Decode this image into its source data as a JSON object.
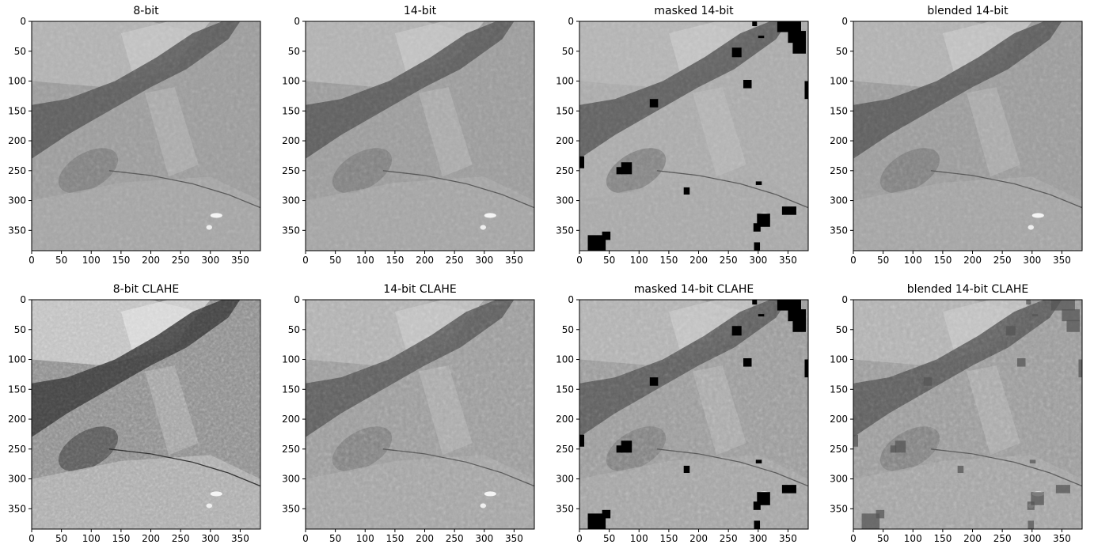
{
  "figure": {
    "layout": {
      "rows": 2,
      "cols": 4
    },
    "colormap": "gray",
    "image_size": [
      384,
      384
    ]
  },
  "chart_data": [
    {
      "type": "heatmap",
      "title": "8-bit",
      "row": 0,
      "col": 0,
      "variant": "plain",
      "tone": "mid",
      "masked": false,
      "blended": false,
      "xlim": [
        0,
        384
      ],
      "ylim": [
        384,
        0
      ],
      "xticks": [
        0,
        50,
        100,
        150,
        200,
        250,
        300,
        350
      ],
      "yticks": [
        0,
        50,
        100,
        150,
        200,
        250,
        300,
        350
      ]
    },
    {
      "type": "heatmap",
      "title": "14-bit",
      "row": 0,
      "col": 1,
      "variant": "plain",
      "tone": "mid",
      "masked": false,
      "blended": false,
      "xlim": [
        0,
        384
      ],
      "ylim": [
        384,
        0
      ],
      "xticks": [
        0,
        50,
        100,
        150,
        200,
        250,
        300,
        350
      ],
      "yticks": [
        0,
        50,
        100,
        150,
        200,
        250,
        300,
        350
      ]
    },
    {
      "type": "heatmap",
      "title": "masked 14-bit",
      "row": 0,
      "col": 2,
      "variant": "plain",
      "tone": "light",
      "masked": true,
      "blended": false,
      "xlim": [
        0,
        384
      ],
      "ylim": [
        384,
        0
      ],
      "xticks": [
        0,
        50,
        100,
        150,
        200,
        250,
        300,
        350
      ],
      "yticks": [
        0,
        50,
        100,
        150,
        200,
        250,
        300,
        350
      ]
    },
    {
      "type": "heatmap",
      "title": "blended 14-bit",
      "row": 0,
      "col": 3,
      "variant": "plain",
      "tone": "mid",
      "masked": false,
      "blended": false,
      "xlim": [
        0,
        384
      ],
      "ylim": [
        384,
        0
      ],
      "xticks": [
        0,
        50,
        100,
        150,
        200,
        250,
        300,
        350
      ],
      "yticks": [
        0,
        50,
        100,
        150,
        200,
        250,
        300,
        350
      ]
    },
    {
      "type": "heatmap",
      "title": "8-bit CLAHE",
      "row": 1,
      "col": 0,
      "variant": "clahe-strong",
      "tone": "contrast",
      "masked": false,
      "blended": false,
      "xlim": [
        0,
        384
      ],
      "ylim": [
        384,
        0
      ],
      "xticks": [
        0,
        50,
        100,
        150,
        200,
        250,
        300,
        350
      ],
      "yticks": [
        0,
        50,
        100,
        150,
        200,
        250,
        300,
        350
      ]
    },
    {
      "type": "heatmap",
      "title": "14-bit CLAHE",
      "row": 1,
      "col": 1,
      "variant": "clahe",
      "tone": "mid",
      "masked": false,
      "blended": false,
      "xlim": [
        0,
        384
      ],
      "ylim": [
        384,
        0
      ],
      "xticks": [
        0,
        50,
        100,
        150,
        200,
        250,
        300,
        350
      ],
      "yticks": [
        0,
        50,
        100,
        150,
        200,
        250,
        300,
        350
      ]
    },
    {
      "type": "heatmap",
      "title": "masked 14-bit CLAHE",
      "row": 1,
      "col": 2,
      "variant": "clahe",
      "tone": "mid",
      "masked": true,
      "blended": false,
      "xlim": [
        0,
        384
      ],
      "ylim": [
        384,
        0
      ],
      "xticks": [
        0,
        50,
        100,
        150,
        200,
        250,
        300,
        350
      ],
      "yticks": [
        0,
        50,
        100,
        150,
        200,
        250,
        300,
        350
      ]
    },
    {
      "type": "heatmap",
      "title": "blended 14-bit CLAHE",
      "row": 1,
      "col": 3,
      "variant": "clahe",
      "tone": "mid",
      "masked": false,
      "blended": true,
      "xlim": [
        0,
        384
      ],
      "ylim": [
        384,
        0
      ],
      "xticks": [
        0,
        50,
        100,
        150,
        200,
        250,
        300,
        350
      ],
      "yticks": [
        0,
        50,
        100,
        150,
        200,
        250,
        300,
        350
      ]
    }
  ],
  "mask_regions": [
    {
      "x": 256,
      "y": 44,
      "w": 16,
      "h": 16
    },
    {
      "x": 275,
      "y": 98,
      "w": 14,
      "h": 14
    },
    {
      "x": 118,
      "y": 130,
      "w": 14,
      "h": 14
    },
    {
      "x": 70,
      "y": 236,
      "w": 18,
      "h": 20
    },
    {
      "x": 62,
      "y": 244,
      "w": 10,
      "h": 12
    },
    {
      "x": 0,
      "y": 226,
      "w": 8,
      "h": 20
    },
    {
      "x": 175,
      "y": 278,
      "w": 10,
      "h": 12
    },
    {
      "x": 296,
      "y": 268,
      "w": 10,
      "h": 6
    },
    {
      "x": 298,
      "y": 322,
      "w": 22,
      "h": 22
    },
    {
      "x": 292,
      "y": 338,
      "w": 12,
      "h": 14
    },
    {
      "x": 340,
      "y": 310,
      "w": 24,
      "h": 14
    },
    {
      "x": 14,
      "y": 358,
      "w": 30,
      "h": 26
    },
    {
      "x": 38,
      "y": 352,
      "w": 14,
      "h": 14
    },
    {
      "x": 293,
      "y": 370,
      "w": 10,
      "h": 14
    },
    {
      "x": 332,
      "y": 0,
      "w": 40,
      "h": 18
    },
    {
      "x": 350,
      "y": 16,
      "w": 30,
      "h": 20
    },
    {
      "x": 358,
      "y": 34,
      "w": 22,
      "h": 20
    },
    {
      "x": 300,
      "y": 24,
      "w": 10,
      "h": 4
    },
    {
      "x": 290,
      "y": 0,
      "w": 8,
      "h": 8
    },
    {
      "x": 378,
      "y": 100,
      "w": 6,
      "h": 30
    }
  ]
}
